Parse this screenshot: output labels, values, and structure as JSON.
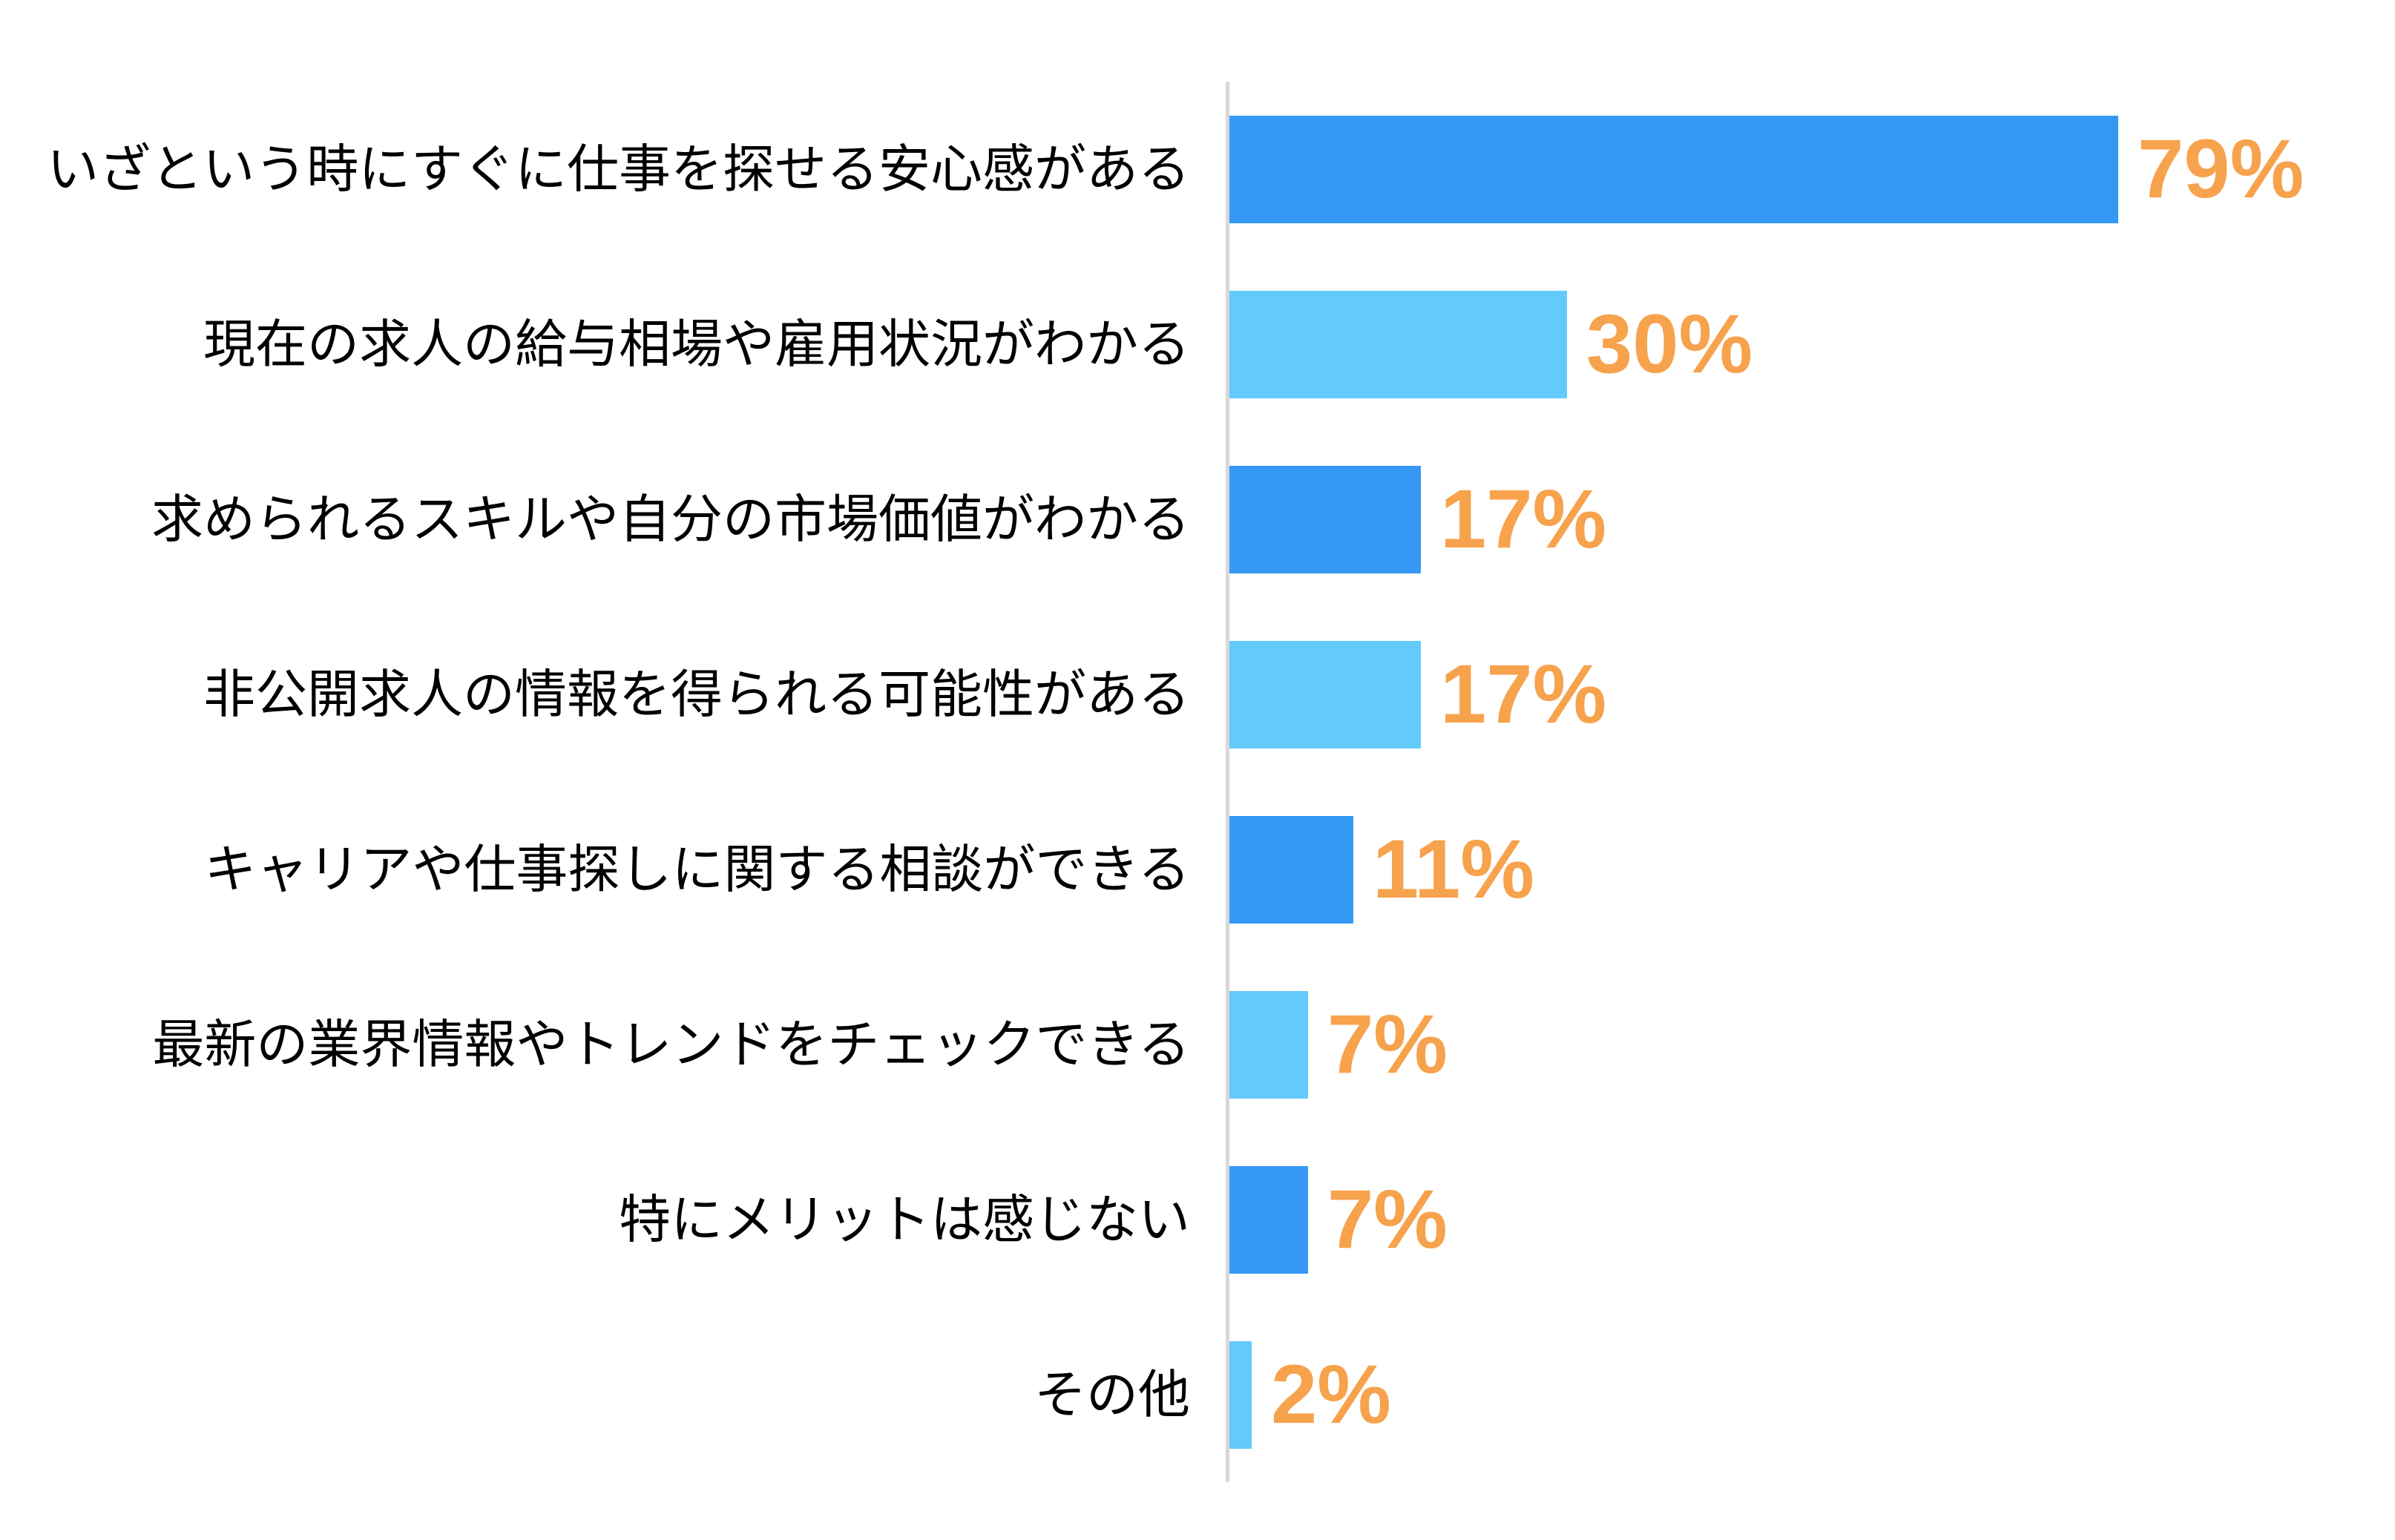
{
  "chart_data": {
    "type": "bar",
    "orientation": "horizontal",
    "title": "",
    "xlabel": "",
    "ylabel": "",
    "xlim": [
      0,
      100
    ],
    "grid": false,
    "legend": "none",
    "unit": "%",
    "categories": [
      "いざという時にすぐに仕事を探せる安心感がある",
      "現在の求人の給与相場や雇用状況がわかる",
      "求められるスキルや自分の市場価値がわかる",
      "非公開求人の情報を得られる可能性がある",
      "キャリアや仕事探しに関する相談ができる",
      "最新の業界情報やトレンドをチェックできる",
      "特にメリットは感じない",
      "その他"
    ],
    "values": [
      79,
      30,
      17,
      17,
      11,
      7,
      7,
      2
    ],
    "value_labels": [
      "79%",
      "30%",
      "17%",
      "17%",
      "11%",
      "7%",
      "7%",
      "2%"
    ],
    "colors": {
      "bar_primary": "#3598f5",
      "bar_secondary": "#63cafb",
      "value_label": "#f7a24c",
      "axis_line": "#d8d8d8",
      "category_text": "#000000",
      "background": "#ffffff"
    },
    "bar_color_pattern": "alternating-primary-secondary"
  }
}
